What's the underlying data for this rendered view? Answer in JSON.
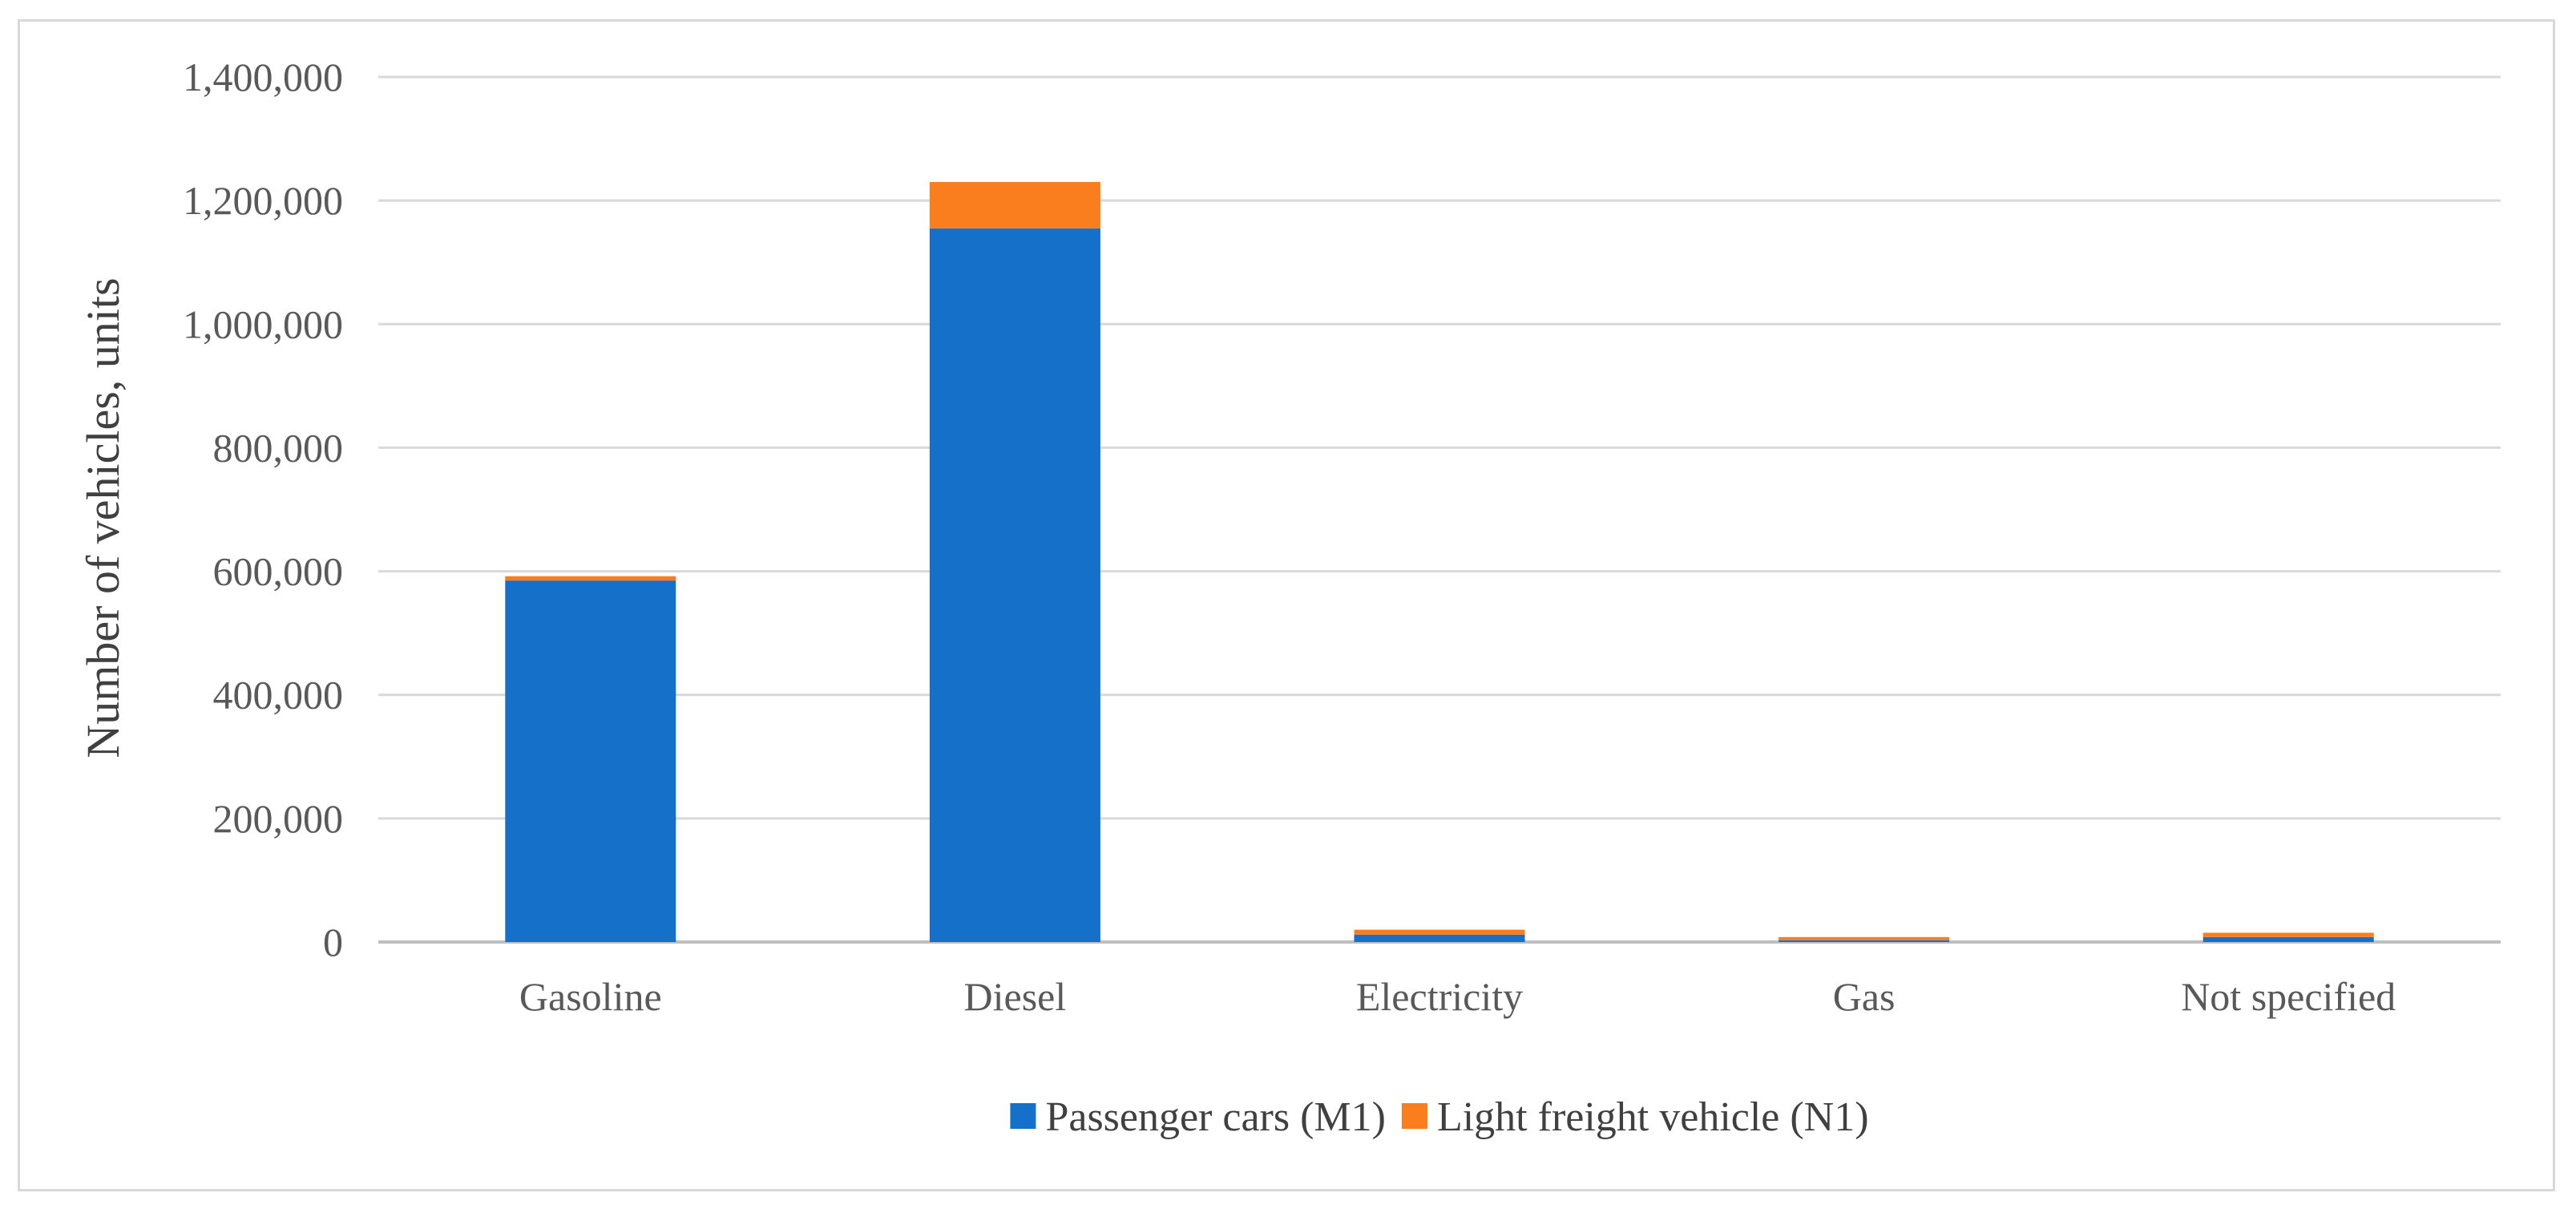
{
  "chart_data": {
    "type": "bar",
    "stacked": true,
    "title": "",
    "xlabel": "",
    "ylabel": "Number of vehicles, units",
    "ylim": [
      0,
      1400000
    ],
    "yticks": [
      0,
      200000,
      400000,
      600000,
      800000,
      1000000,
      1200000,
      1400000
    ],
    "ytick_labels": [
      "0",
      "200,000",
      "400,000",
      "600,000",
      "800,000",
      "1,000,000",
      "1,200,000",
      "1,400,000"
    ],
    "categories": [
      "Gasoline",
      "Diesel",
      "Electricity",
      "Gas",
      "Not specified"
    ],
    "series": [
      {
        "name": "Passenger cars (M1)",
        "color": "#1570c9",
        "values": [
          585000,
          1155000,
          12000,
          3000,
          8000
        ]
      },
      {
        "name": "Light freight vehicle (N1)",
        "color": "#fa7d1e",
        "values": [
          7000,
          75000,
          8000,
          5000,
          7000
        ]
      }
    ],
    "grid": true,
    "legend_position": "bottom-center"
  }
}
